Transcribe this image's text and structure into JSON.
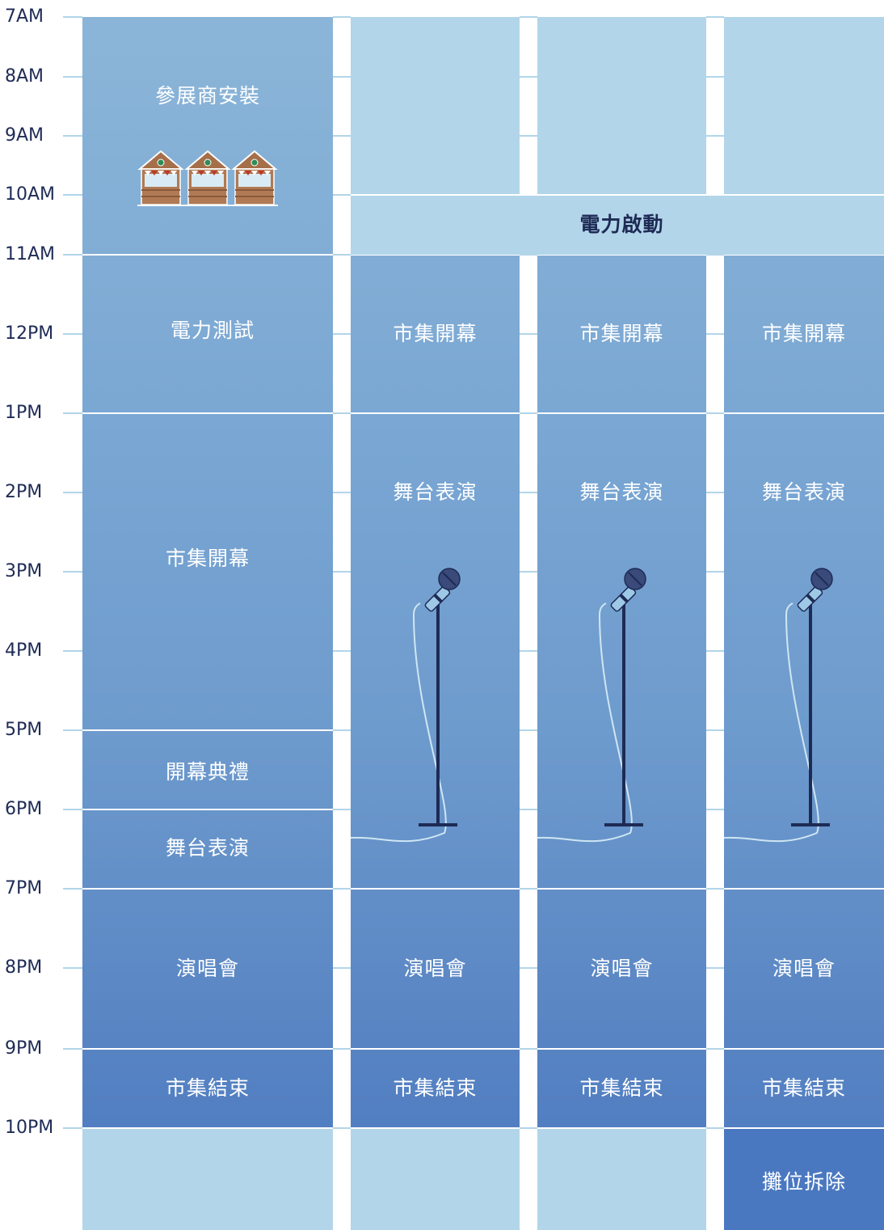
{
  "time_axis": [
    "7AM",
    "8AM",
    "9AM",
    "10AM",
    "11AM",
    "12PM",
    "1PM",
    "2PM",
    "3PM",
    "4PM",
    "5PM",
    "6PM",
    "7PM",
    "8PM",
    "9PM",
    "10PM"
  ],
  "columns": [
    {
      "events": [
        {
          "label": "參展商安裝",
          "start": 0,
          "end": 4,
          "style": "grad"
        },
        {
          "label": "電力測試",
          "start": 4,
          "end": 6,
          "style": "grad"
        },
        {
          "label": "市集開幕",
          "start": 6,
          "end": 10,
          "style": "grad"
        },
        {
          "label": "開幕典禮",
          "start": 10,
          "end": 11,
          "style": "grad"
        },
        {
          "label": "舞台表演",
          "start": 11,
          "end": 12,
          "style": "grad"
        },
        {
          "label": "演唱會",
          "start": 12,
          "end": 14,
          "style": "grad"
        },
        {
          "label": "市集結束",
          "start": 14,
          "end": 15,
          "style": "grad"
        },
        {
          "label": "",
          "start": 15,
          "end": 16.3,
          "style": "light"
        }
      ]
    },
    {
      "events": [
        {
          "label": "",
          "start": 0,
          "end": 3,
          "style": "light"
        },
        {
          "label": "",
          "start": 3,
          "end": 4,
          "style": "light"
        },
        {
          "label": "市集開幕",
          "start": 4,
          "end": 6,
          "style": "grad"
        },
        {
          "label": "舞台表演",
          "start": 6,
          "end": 12,
          "style": "grad"
        },
        {
          "label": "演唱會",
          "start": 12,
          "end": 14,
          "style": "grad"
        },
        {
          "label": "市集結束",
          "start": 14,
          "end": 15,
          "style": "grad"
        },
        {
          "label": "",
          "start": 15,
          "end": 16.3,
          "style": "light"
        }
      ]
    },
    {
      "events": [
        {
          "label": "",
          "start": 0,
          "end": 3,
          "style": "light"
        },
        {
          "label": "市集開幕",
          "start": 4,
          "end": 6,
          "style": "grad"
        },
        {
          "label": "舞台表演",
          "start": 6,
          "end": 12,
          "style": "grad"
        },
        {
          "label": "演唱會",
          "start": 12,
          "end": 14,
          "style": "grad"
        },
        {
          "label": "市集結束",
          "start": 14,
          "end": 15,
          "style": "grad"
        },
        {
          "label": "",
          "start": 15,
          "end": 16.3,
          "style": "light"
        }
      ]
    },
    {
      "events": [
        {
          "label": "",
          "start": 0,
          "end": 3,
          "style": "light"
        },
        {
          "label": "",
          "start": 3,
          "end": 4,
          "style": "light"
        },
        {
          "label": "市集開幕",
          "start": 4,
          "end": 6,
          "style": "grad"
        },
        {
          "label": "舞台表演",
          "start": 6,
          "end": 12,
          "style": "grad"
        },
        {
          "label": "演唱會",
          "start": 12,
          "end": 14,
          "style": "grad"
        },
        {
          "label": "市集結束",
          "start": 14,
          "end": 15,
          "style": "grad"
        },
        {
          "label": "攤位拆除",
          "start": 15,
          "end": 16.3,
          "style": "dark"
        }
      ]
    }
  ],
  "spanning_event": {
    "label": "電力啟動",
    "start": 3,
    "end": 4
  }
}
